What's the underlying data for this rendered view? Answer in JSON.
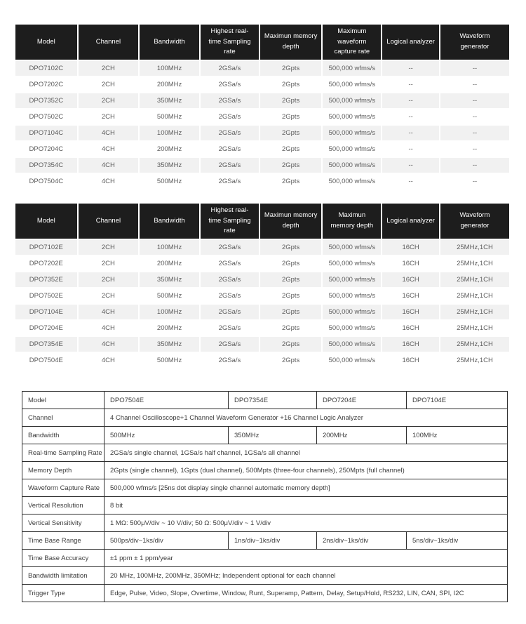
{
  "colors": {
    "header_bg": "#1d1d1d",
    "header_text": "#ffffff",
    "row_stripe_bg": "#f1f1f1",
    "row_text": "#5d5d5d",
    "detail_border": "#2e2e2e",
    "detail_text": "#3c3c3c"
  },
  "series_c_table": {
    "headers": [
      "Model",
      "Channel",
      "Bandwidth",
      "Highest real-time Sampling rate",
      "Maximun memory depth",
      "Maximum waveform capture rate",
      "Logical analyzer",
      "Waveform generator"
    ],
    "rows": [
      [
        "DPO7102C",
        "2CH",
        "100MHz",
        "2GSa/s",
        "2Gpts",
        "500,000 wfms/s",
        "--",
        "--"
      ],
      [
        "DPO7202C",
        "2CH",
        "200MHz",
        "2GSa/s",
        "2Gpts",
        "500,000 wfms/s",
        "--",
        "--"
      ],
      [
        "DPO7352C",
        "2CH",
        "350MHz",
        "2GSa/s",
        "2Gpts",
        "500,000 wfms/s",
        "--",
        "--"
      ],
      [
        "DPO7502C",
        "2CH",
        "500MHz",
        "2GSa/s",
        "2Gpts",
        "500,000 wfms/s",
        "--",
        "--"
      ],
      [
        "DPO7104C",
        "4CH",
        "100MHz",
        "2GSa/s",
        "2Gpts",
        "500,000 wfms/s",
        "--",
        "--"
      ],
      [
        "DPO7204C",
        "4CH",
        "200MHz",
        "2GSa/s",
        "2Gpts",
        "500,000 wfms/s",
        "--",
        "--"
      ],
      [
        "DPO7354C",
        "4CH",
        "350MHz",
        "2GSa/s",
        "2Gpts",
        "500,000 wfms/s",
        "--",
        "--"
      ],
      [
        "DPO7504C",
        "4CH",
        "500MHz",
        "2GSa/s",
        "2Gpts",
        "500,000 wfms/s",
        "--",
        "--"
      ]
    ]
  },
  "series_e_table": {
    "headers": [
      "Model",
      "Channel",
      "Bandwidth",
      "Highest real-time Sampling rate",
      "Maximun memory depth",
      "Maximun memory depth",
      "Logical analyzer",
      "Waveform generator"
    ],
    "rows": [
      [
        "DPO7102E",
        "2CH",
        "100MHz",
        "2GSa/s",
        "2Gpts",
        "500,000 wfms/s",
        "16CH",
        "25MHz,1CH"
      ],
      [
        "DPO7202E",
        "2CH",
        "200MHz",
        "2GSa/s",
        "2Gpts",
        "500,000 wfms/s",
        "16CH",
        "25MHz,1CH"
      ],
      [
        "DPO7352E",
        "2CH",
        "350MHz",
        "2GSa/s",
        "2Gpts",
        "500,000 wfms/s",
        "16CH",
        "25MHz,1CH"
      ],
      [
        "DPO7502E",
        "2CH",
        "500MHz",
        "2GSa/s",
        "2Gpts",
        "500,000 wfms/s",
        "16CH",
        "25MHz,1CH"
      ],
      [
        "DPO7104E",
        "4CH",
        "100MHz",
        "2GSa/s",
        "2Gpts",
        "500,000 wfms/s",
        "16CH",
        "25MHz,1CH"
      ],
      [
        "DPO7204E",
        "4CH",
        "200MHz",
        "2GSa/s",
        "2Gpts",
        "500,000 wfms/s",
        "16CH",
        "25MHz,1CH"
      ],
      [
        "DPO7354E",
        "4CH",
        "350MHz",
        "2GSa/s",
        "2Gpts",
        "500,000 wfms/s",
        "16CH",
        "25MHz,1CH"
      ],
      [
        "DPO7504E",
        "4CH",
        "500MHz",
        "2GSa/s",
        "2Gpts",
        "500,000 wfms/s",
        "16CH",
        "25MHz,1CH"
      ]
    ]
  },
  "detail_table": {
    "rows": [
      {
        "label": "Model",
        "cells": [
          "DPO7504E",
          "DPO7354E",
          "DPO7204E",
          "DPO7104E"
        ]
      },
      {
        "label": "Channel",
        "span": "4 Channel Oscilloscope+1 Channel Waveform Generator +16 Channel Logic Analyzer"
      },
      {
        "label": "Bandwidth",
        "cells": [
          "500MHz",
          "350MHz",
          "200MHz",
          "100MHz"
        ]
      },
      {
        "label": "Real-time Sampling Rate",
        "span": "2GSa/s single channel, 1GSa/s half channel, 1GSa/s all channel"
      },
      {
        "label": "Memory Depth",
        "span": "2Gpts (single channel), 1Gpts (dual channel), 500Mpts (three-four channels), 250Mpts (full channel)"
      },
      {
        "label": "Waveform Capture Rate",
        "span": "500,000 wfms/s [25ns dot display single channel automatic memory depth]"
      },
      {
        "label": "Vertical Resolution",
        "span": "8 bit"
      },
      {
        "label": "Vertical Sensitivity",
        "span": "1 MΩ: 500μV/div ~ 10 V/div; 50 Ω: 500μV/div ~ 1 V/div"
      },
      {
        "label": "Time Base Range",
        "cells": [
          "500ps/div~1ks/div",
          "1ns/div~1ks/div",
          "2ns/div~1ks/div",
          "5ns/div~1ks/div"
        ]
      },
      {
        "label": "Time Base Accuracy",
        "span": "±1 ppm ± 1 ppm/year"
      },
      {
        "label": "Bandwidth limitation",
        "span": "20 MHz, 100MHz, 200MHz, 350MHz;  Independent optional for each channel"
      },
      {
        "label": "Trigger Type",
        "span": "Edge, Pulse, Video, Slope, Overtime, Window, Runt, Superamp, Pattern, Delay, Setup/Hold, RS232, LIN, CAN, SPI, I2C"
      }
    ]
  }
}
